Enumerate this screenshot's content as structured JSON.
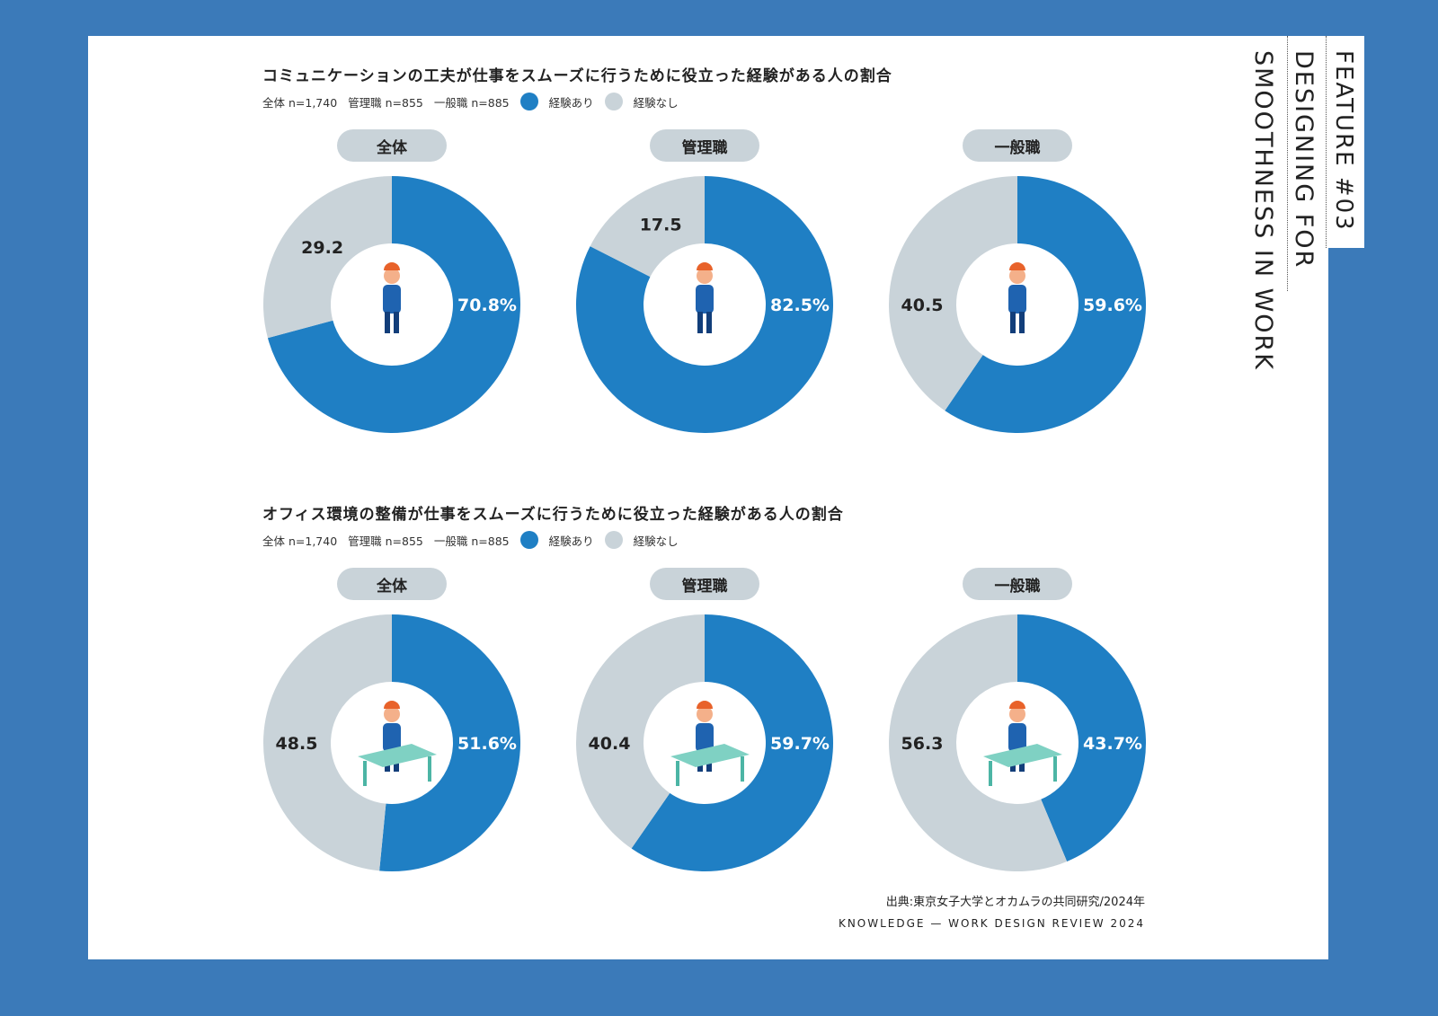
{
  "side": {
    "feature": "FEATURE #03",
    "line1": "DESIGNING FOR",
    "line2": "SMOOTHNESS IN WORK"
  },
  "colors": {
    "yes": "#1f7fc4",
    "no": "#c9d3d9",
    "background": "#3b7ab9"
  },
  "chart_data": [
    {
      "type": "pie",
      "title": "コミュニケーションの工夫が仕事をスムーズに行うために役立った経験がある人の割合",
      "legend": {
        "samples": [
          "全体 n=1,740",
          "管理職 n=855",
          "一般職 n=885"
        ],
        "entries": [
          "経験あり",
          "経験なし"
        ]
      },
      "groups": [
        {
          "label": "全体",
          "yes": 70.8,
          "no": 29.2,
          "yes_label": "70.8%",
          "no_label": "29.2"
        },
        {
          "label": "管理職",
          "yes": 82.5,
          "no": 17.5,
          "yes_label": "82.5%",
          "no_label": "17.5"
        },
        {
          "label": "一般職",
          "yes": 59.6,
          "no": 40.5,
          "yes_label": "59.6%",
          "no_label": "40.5"
        }
      ]
    },
    {
      "type": "pie",
      "title": "オフィス環境の整備が仕事をスムーズに行うために役立った経験がある人の割合",
      "legend": {
        "samples": [
          "全体 n=1,740",
          "管理職 n=855",
          "一般職 n=885"
        ],
        "entries": [
          "経験あり",
          "経験なし"
        ]
      },
      "groups": [
        {
          "label": "全体",
          "yes": 51.6,
          "no": 48.5,
          "yes_label": "51.6%",
          "no_label": "48.5"
        },
        {
          "label": "管理職",
          "yes": 59.7,
          "no": 40.4,
          "yes_label": "59.7%",
          "no_label": "40.4"
        },
        {
          "label": "一般職",
          "yes": 43.7,
          "no": 56.3,
          "yes_label": "43.7%",
          "no_label": "56.3"
        }
      ]
    }
  ],
  "footer": {
    "source": "出典:東京女子大学とオカムラの共同研究/2024年",
    "credit": "KNOWLEDGE — WORK DESIGN REVIEW 2024"
  }
}
